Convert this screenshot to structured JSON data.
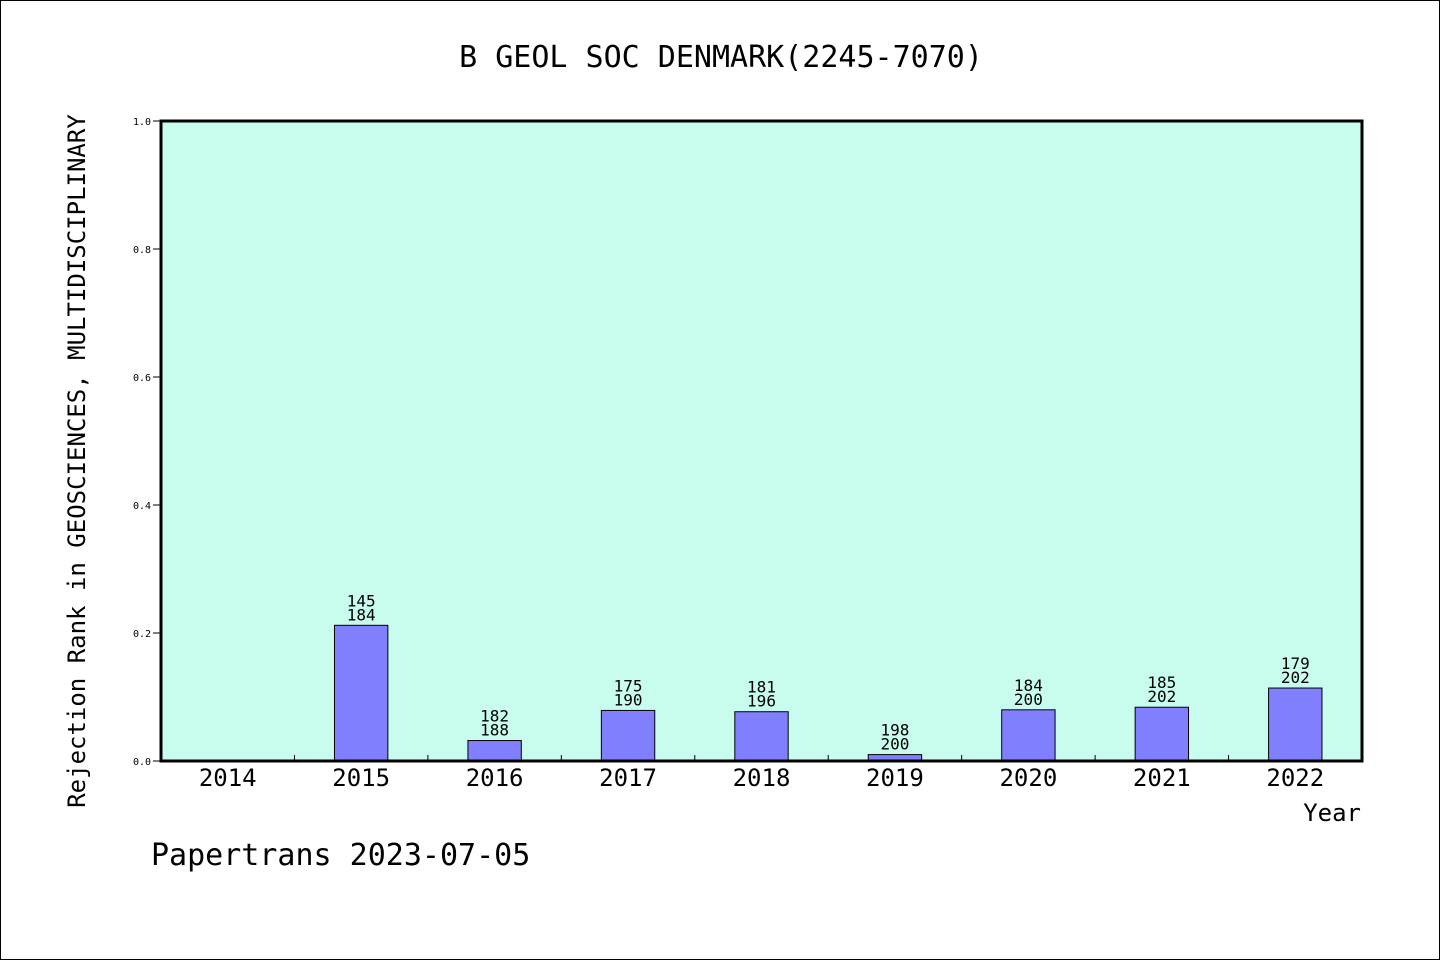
{
  "chart_data": {
    "type": "bar",
    "title": "B GEOL SOC DENMARK(2245-7070)",
    "xlabel": "Year",
    "ylabel": "Rejection Rank in GEOSCIENCES, MULTIDISCIPLINARY",
    "ylim": [
      0,
      1.0
    ],
    "yticks": [
      "0.0",
      "0.2",
      "0.4",
      "0.6",
      "0.8",
      "1.0"
    ],
    "categories": [
      "2014",
      "2015",
      "2016",
      "2017",
      "2018",
      "2019",
      "2020",
      "2021",
      "2022"
    ],
    "values": [
      null,
      0.212,
      0.032,
      0.079,
      0.077,
      0.01,
      0.08,
      0.084,
      0.114
    ],
    "labels_top": [
      null,
      "145",
      "182",
      "175",
      "181",
      "198",
      "184",
      "185",
      "179"
    ],
    "labels_bottom": [
      null,
      "184",
      "188",
      "190",
      "196",
      "200",
      "200",
      "202",
      "202"
    ],
    "plot_background": "#c8fcee",
    "bar_color": "#8080ff",
    "grid": false
  },
  "footer": "Papertrans 2023-07-05"
}
